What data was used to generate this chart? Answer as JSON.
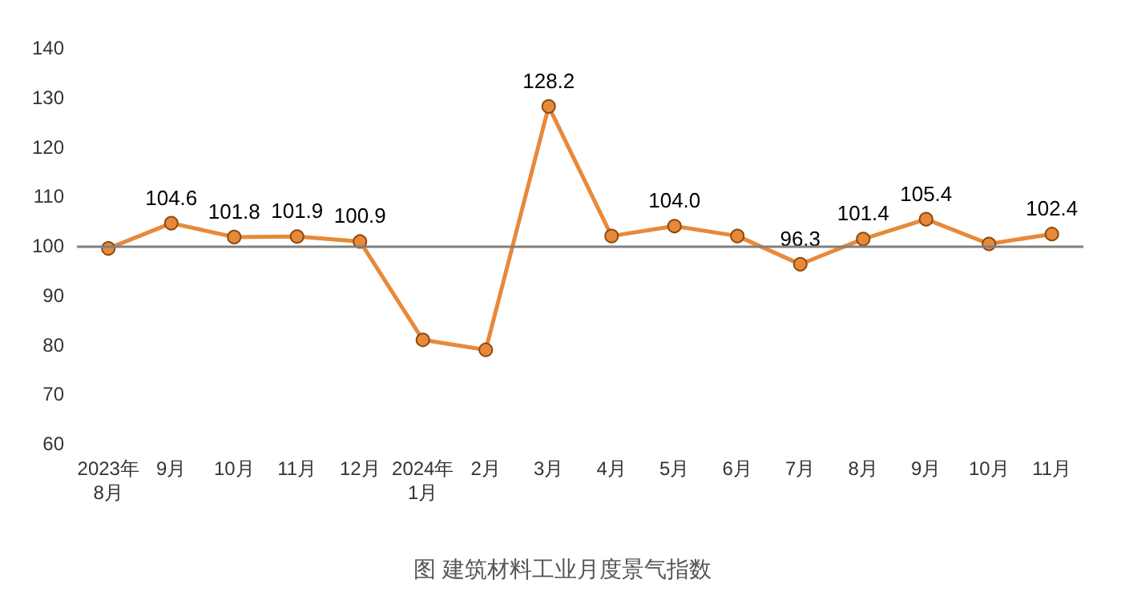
{
  "chart_data": {
    "type": "line",
    "title": "图 建筑材料工业月度景气指数",
    "categories": [
      "2023年\n8月",
      "9月",
      "10月",
      "11月",
      "12月",
      "2024年\n1月",
      "2月",
      "3月",
      "4月",
      "5月",
      "6月",
      "7月",
      "8月",
      "9月",
      "10月",
      "11月"
    ],
    "series": [
      {
        "color": "#e8893a",
        "values": [
          99.5,
          104.6,
          101.8,
          101.9,
          100.9,
          81,
          79,
          128.2,
          102,
          104.0,
          102,
          96.3,
          101.4,
          105.4,
          100.4,
          102.4
        ],
        "value_labels": [
          null,
          "104.6",
          "101.8",
          "101.9",
          "100.9",
          null,
          null,
          "128.2",
          null,
          "104.0",
          null,
          "96.3",
          "101.4",
          "105.4",
          null,
          "102.4"
        ]
      }
    ],
    "ylim": [
      60,
      140
    ],
    "yticks": [
      60,
      70,
      80,
      90,
      100,
      110,
      120,
      130,
      140
    ],
    "grid": false,
    "marker": "circle",
    "ref_lines": [
      {
        "axis": "y",
        "value": 100,
        "color": "#808080"
      }
    ]
  }
}
